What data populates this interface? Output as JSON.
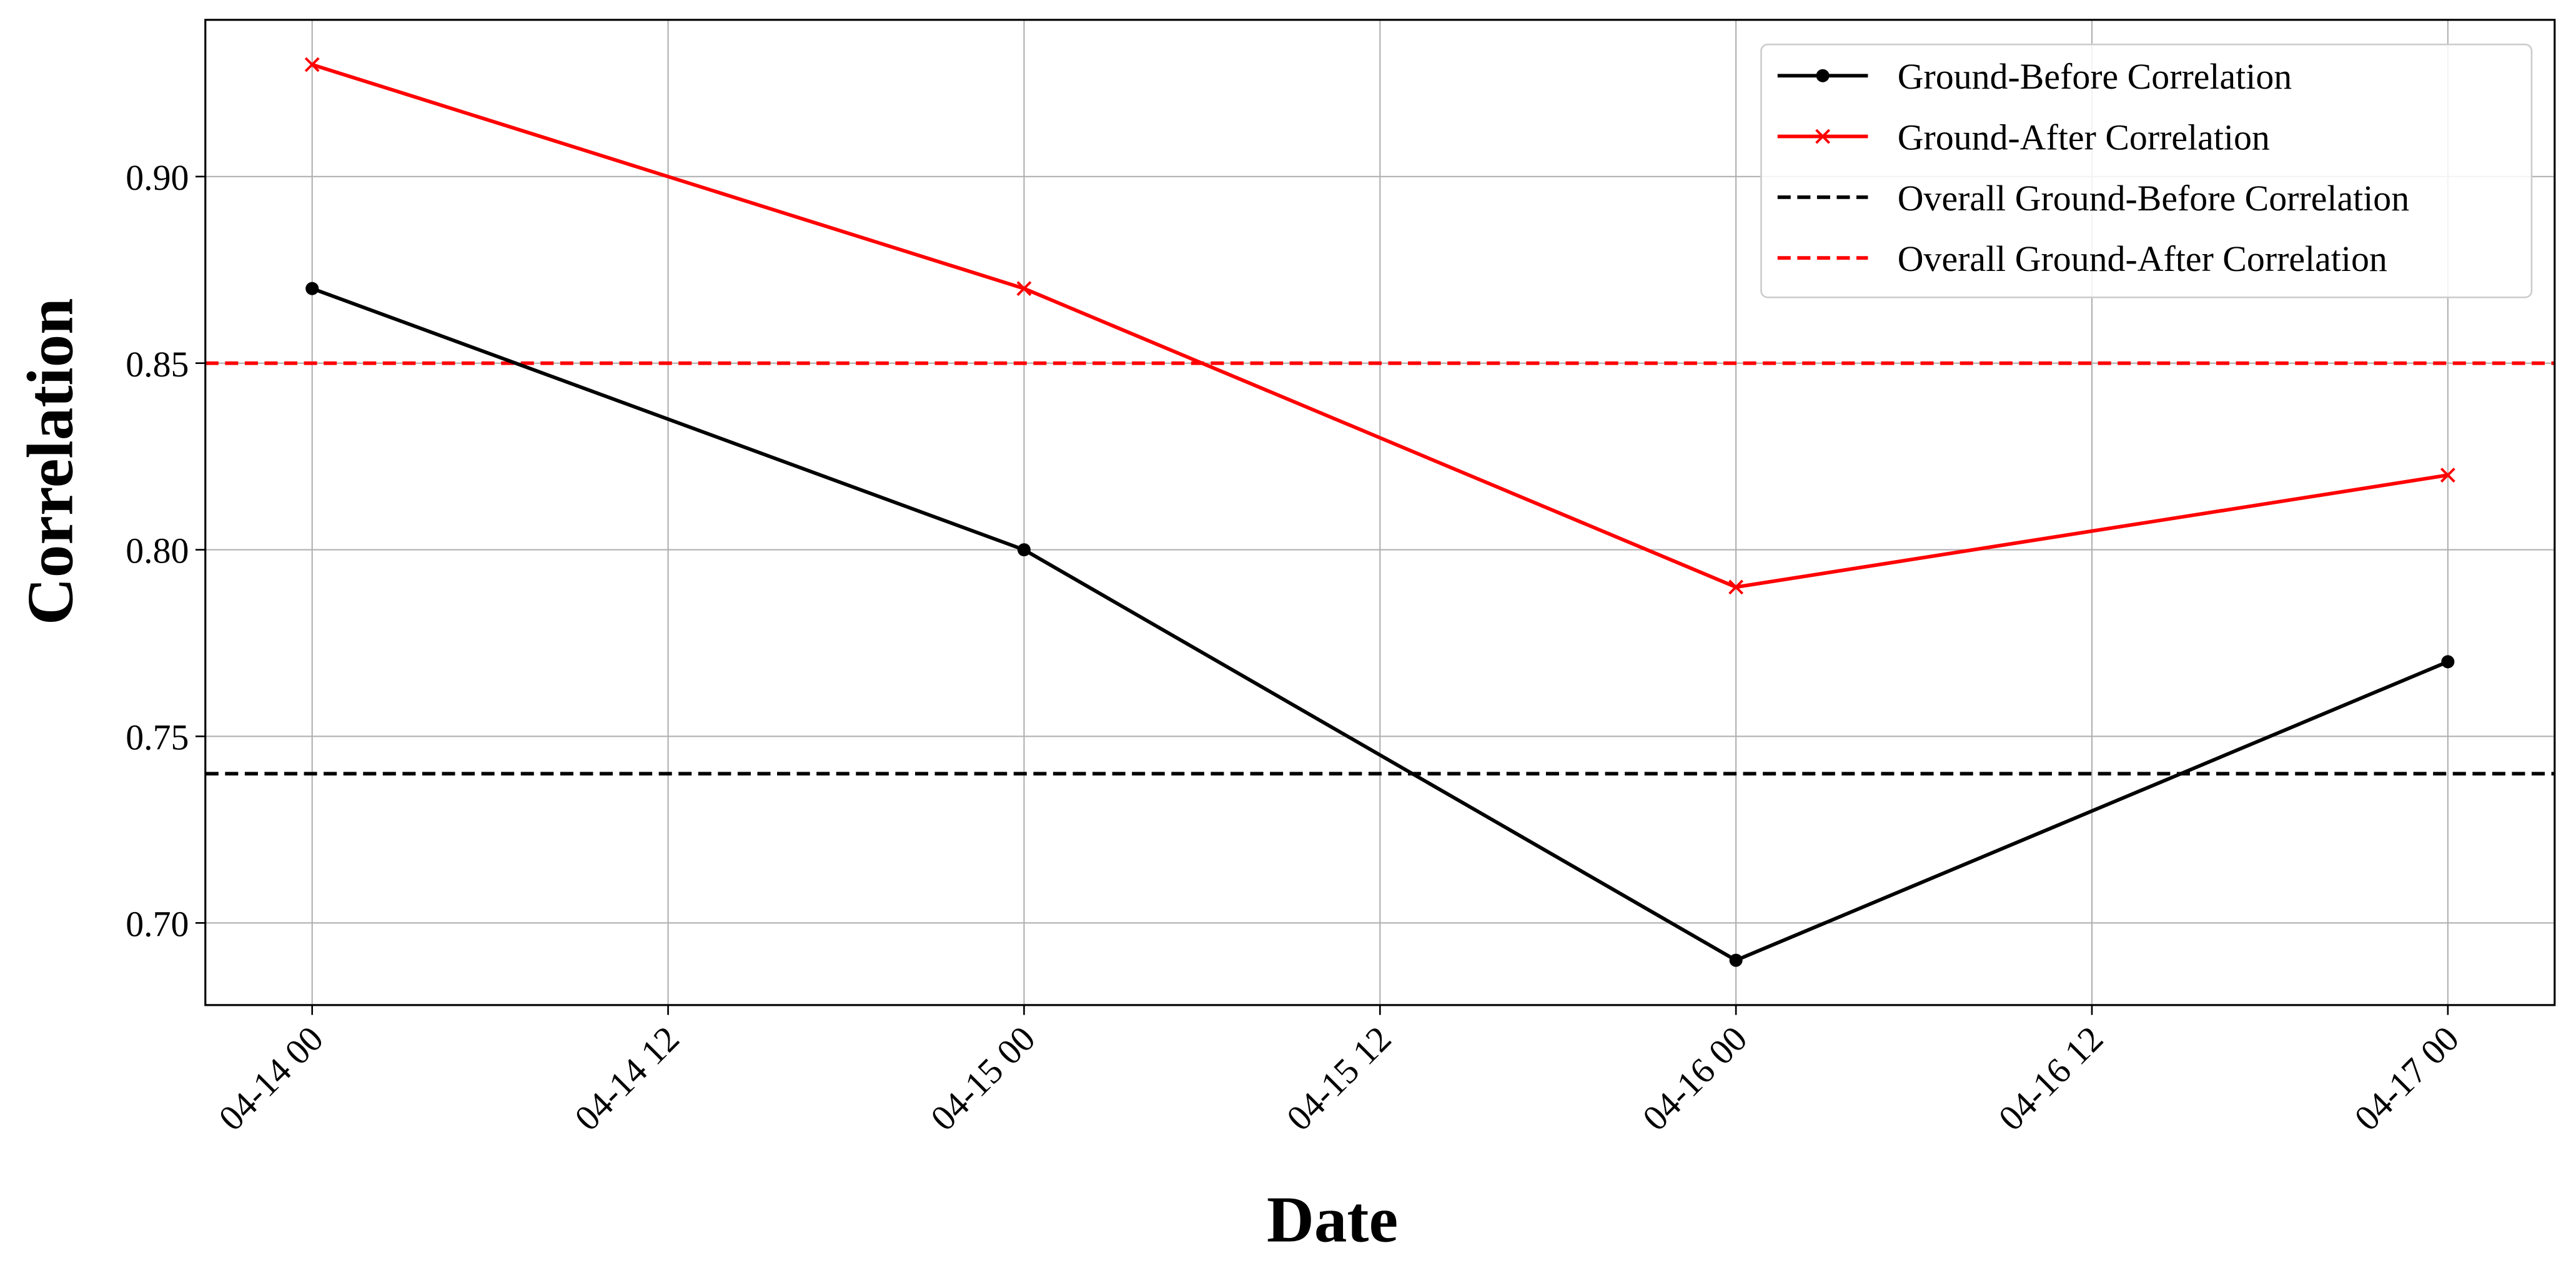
{
  "chart_data": {
    "type": "line",
    "xlabel": "Date",
    "ylabel": "Correlation",
    "x": [
      "04-14 00",
      "04-15 00",
      "04-16 00",
      "04-17 00"
    ],
    "series": [
      {
        "name": "Ground-Before Correlation",
        "color": "#000000",
        "marker": "circle",
        "values": [
          0.87,
          0.8,
          0.69,
          0.77
        ]
      },
      {
        "name": "Ground-After Correlation",
        "color": "#ff0000",
        "marker": "x",
        "values": [
          0.93,
          0.87,
          0.79,
          0.82
        ]
      }
    ],
    "hlines": [
      {
        "name": "Overall Ground-Before Correlation",
        "color": "#000000",
        "value": 0.74
      },
      {
        "name": "Overall Ground-After Correlation",
        "color": "#ff0000",
        "value": 0.85
      }
    ],
    "xlim": [
      "04-13 20:24",
      "04-17 03:36"
    ],
    "xticks": [
      "04-14 00",
      "04-14 12",
      "04-15 00",
      "04-15 12",
      "04-16 00",
      "04-16 12",
      "04-17 00"
    ],
    "ylim": [
      0.678,
      0.942
    ],
    "yticks": [
      {
        "value": 0.7,
        "label": "0.70"
      },
      {
        "value": 0.75,
        "label": "0.75"
      },
      {
        "value": 0.8,
        "label": "0.80"
      },
      {
        "value": 0.85,
        "label": "0.85"
      },
      {
        "value": 0.9,
        "label": "0.90"
      }
    ],
    "grid": true,
    "legend": "upper right"
  }
}
